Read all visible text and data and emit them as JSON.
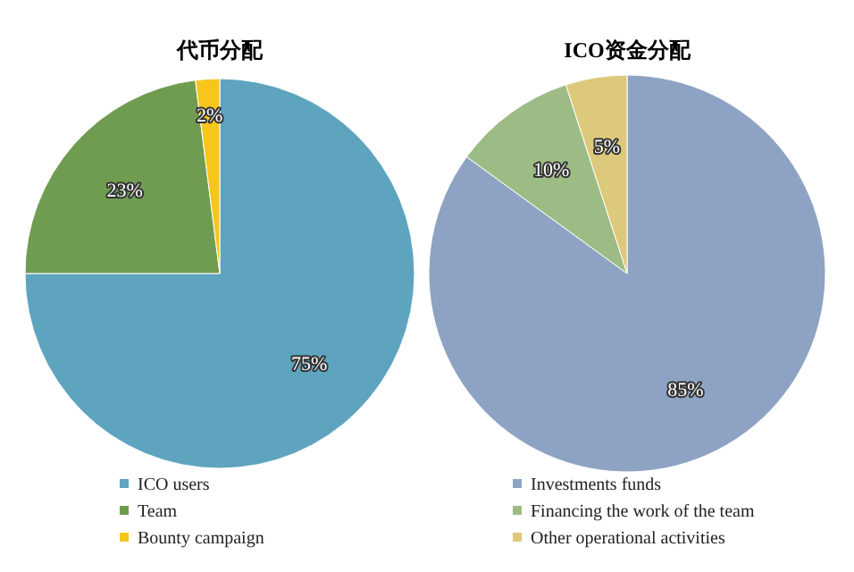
{
  "chart_data": [
    {
      "type": "pie",
      "title": "代币分配",
      "categories": [
        "ICO users",
        "Team",
        "Bounty campaign"
      ],
      "values": [
        75,
        23,
        2
      ],
      "value_labels": [
        "75%",
        "23%",
        "2%"
      ],
      "colors": [
        "#5ea4bf",
        "#6f9c50",
        "#f6c61c"
      ],
      "legend": "bottom"
    },
    {
      "type": "pie",
      "title": "ICO资金分配",
      "categories": [
        "Investments funds",
        "Financing the work of the team",
        "Other operational activities"
      ],
      "values": [
        85,
        10,
        5
      ],
      "value_labels": [
        "85%",
        "10%",
        "5%"
      ],
      "colors": [
        "#8ea3c3",
        "#9dbc85",
        "#dcc97b"
      ],
      "legend": "bottom"
    }
  ]
}
